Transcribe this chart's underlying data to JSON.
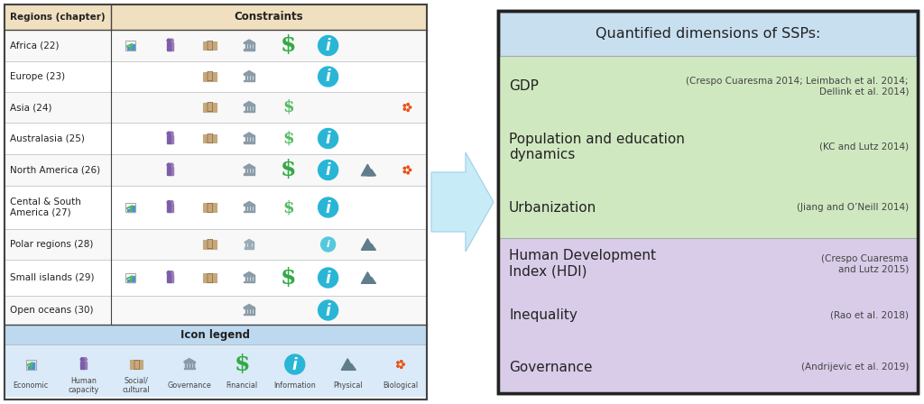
{
  "left_panel": {
    "header_bg": "#f0e0c0",
    "body_bg": "#ffffff",
    "border_color": "#444444",
    "regions_header": "Regions (chapter)",
    "constraints_header": "Constraints",
    "legend_header": "Icon legend",
    "legend_bg": "#daeaf8",
    "legend_header_bg": "#bdd9f0",
    "regions": [
      "Africa (22)",
      "Europe (23)",
      "Asia (24)",
      "Australasia (25)",
      "North America (26)",
      "Cental & South\nAmerica (27)",
      "Polar regions (28)",
      "Small islands (29)",
      "Open oceans (30)"
    ],
    "icon_col_labels": [
      "Economic",
      "Human\ncapacity",
      "Social/\ncultural",
      "Governance",
      "Financial",
      "Information",
      "Physical",
      "Biological"
    ],
    "icon_display": [
      [
        "econ",
        "human",
        "social",
        "gov",
        "fin_big",
        "info_big",
        "",
        ""
      ],
      [
        "",
        "",
        "social",
        "gov",
        "",
        "info_big",
        "",
        ""
      ],
      [
        "",
        "",
        "social",
        "gov",
        "fin_sm",
        "",
        "",
        "bio"
      ],
      [
        "",
        "human",
        "social",
        "gov",
        "fin_sm",
        "info_big",
        "",
        ""
      ],
      [
        "",
        "human",
        "",
        "gov",
        "fin_big",
        "info_big",
        "phys",
        "bio"
      ],
      [
        "econ",
        "human",
        "social",
        "gov",
        "fin_sm",
        "info_big",
        "",
        ""
      ],
      [
        "",
        "",
        "social",
        "gov_sm",
        "",
        "info_sm",
        "phys",
        ""
      ],
      [
        "econ",
        "human",
        "social",
        "gov",
        "fin_big",
        "info_big",
        "phys",
        ""
      ],
      [
        "",
        "",
        "",
        "gov",
        "",
        "info_big",
        "",
        ""
      ]
    ]
  },
  "right_panel": {
    "title": "Quantified dimensions of SSPs:",
    "title_bg": "#c8dff0",
    "green_bg": "#d0e8c0",
    "purple_bg": "#d8cce8",
    "border_color": "#222222",
    "green_items": [
      {
        "label": "GDP",
        "citation": "(Crespo Cuaresma 2014; Leimbach et al. 2014;\nDellink et al. 2014)"
      },
      {
        "label": "Population and education\ndynamics",
        "citation": "(KC and Lutz 2014)"
      },
      {
        "label": "Urbanization",
        "citation": "(Jiang and O’Neill 2014)"
      }
    ],
    "purple_items": [
      {
        "label": "Human Development\nIndex (HDI)",
        "citation": "(Crespo Cuaresma\nand Lutz 2015)"
      },
      {
        "label": "Inequality",
        "citation": "(Rao et al. 2018)"
      },
      {
        "label": "Governance",
        "citation": "(Andrijevic et al. 2019)"
      }
    ]
  },
  "arrow_color": "#c8ebf8",
  "arrow_edge": "#a0d0e8"
}
